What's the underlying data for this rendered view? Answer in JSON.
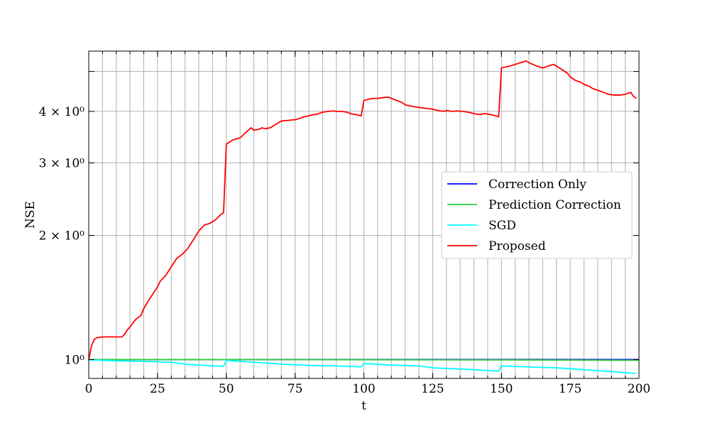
{
  "chart_data": {
    "type": "line",
    "xlabel": "t",
    "ylabel": "NSE",
    "xlim": [
      0,
      200
    ],
    "ylim": [
      0.9,
      5.6
    ],
    "yscale": "log",
    "grid": true,
    "legend_position": "center-right",
    "xticks": [
      {
        "value": 0,
        "label": "0"
      },
      {
        "value": 25,
        "label": "25"
      },
      {
        "value": 50,
        "label": "50"
      },
      {
        "value": 75,
        "label": "75"
      },
      {
        "value": 100,
        "label": "100"
      },
      {
        "value": 125,
        "label": "125"
      },
      {
        "value": 150,
        "label": "150"
      },
      {
        "value": 175,
        "label": "175"
      },
      {
        "value": 200,
        "label": "200"
      }
    ],
    "yticks": [
      {
        "value": 1,
        "label": "10⁰"
      },
      {
        "value": 2,
        "label": "2 × 10⁰"
      },
      {
        "value": 3,
        "label": "3 × 10⁰"
      },
      {
        "value": 4,
        "label": "4 × 10⁰"
      }
    ],
    "series": [
      {
        "name": "Correction Only",
        "color": "#0000ff",
        "x": [
          0,
          200
        ],
        "y": [
          1.0,
          1.0
        ]
      },
      {
        "name": "Prediction Correction",
        "color": "#2ecc40",
        "x": [
          0,
          50,
          100,
          150,
          200
        ],
        "y": [
          1.0,
          1.0,
          0.999,
          0.998,
          0.996
        ]
      },
      {
        "name": "SGD",
        "color": "#00ffff",
        "x": [
          0,
          10,
          20,
          30,
          35,
          40,
          49,
          50,
          60,
          70,
          80,
          90,
          99,
          100,
          110,
          120,
          125,
          140,
          149,
          150,
          160,
          170,
          180,
          190,
          199
        ],
        "y": [
          0.998,
          0.993,
          0.99,
          0.985,
          0.975,
          0.97,
          0.963,
          0.995,
          0.985,
          0.975,
          0.968,
          0.965,
          0.96,
          0.978,
          0.97,
          0.965,
          0.955,
          0.945,
          0.937,
          0.965,
          0.96,
          0.955,
          0.945,
          0.935,
          0.925
        ]
      },
      {
        "name": "Proposed",
        "color": "#ff0000",
        "x": [
          0,
          1,
          2,
          3,
          5,
          8,
          12,
          13,
          14,
          15,
          17,
          19,
          20,
          22,
          25,
          26,
          28,
          30,
          32,
          34,
          36,
          38,
          40,
          42,
          44,
          46,
          48,
          49,
          50,
          52,
          53,
          55,
          58,
          59,
          60,
          62,
          63,
          64,
          66,
          68,
          70,
          72,
          75,
          77,
          78,
          80,
          81,
          83,
          85,
          87,
          89,
          90,
          92,
          94,
          95,
          97,
          99,
          100,
          103,
          105,
          107,
          109,
          110,
          112,
          114,
          115,
          117,
          119,
          121,
          125,
          127,
          129,
          130,
          132,
          134,
          136,
          138,
          140,
          142,
          144,
          146,
          148,
          149,
          150,
          153,
          155,
          157,
          159,
          160,
          162,
          164,
          165,
          167,
          169,
          170,
          172,
          174,
          175,
          177,
          179,
          180,
          182,
          183,
          185,
          187,
          189,
          191,
          193,
          195,
          197,
          198,
          199
        ],
        "y": [
          1.0,
          1.08,
          1.12,
          1.13,
          1.135,
          1.135,
          1.135,
          1.15,
          1.18,
          1.2,
          1.25,
          1.28,
          1.33,
          1.4,
          1.5,
          1.55,
          1.6,
          1.68,
          1.76,
          1.8,
          1.86,
          1.95,
          2.05,
          2.12,
          2.14,
          2.18,
          2.25,
          2.27,
          3.33,
          3.4,
          3.42,
          3.45,
          3.6,
          3.65,
          3.6,
          3.62,
          3.65,
          3.63,
          3.65,
          3.72,
          3.79,
          3.8,
          3.82,
          3.85,
          3.88,
          3.9,
          3.92,
          3.94,
          3.98,
          4.0,
          4.01,
          4.0,
          4.0,
          3.98,
          3.95,
          3.93,
          3.9,
          4.25,
          4.3,
          4.3,
          4.32,
          4.33,
          4.3,
          4.25,
          4.2,
          4.15,
          4.12,
          4.1,
          4.08,
          4.05,
          4.02,
          4.0,
          4.02,
          4.0,
          4.01,
          4.0,
          3.98,
          3.95,
          3.93,
          3.95,
          3.93,
          3.9,
          3.88,
          5.1,
          5.15,
          5.2,
          5.25,
          5.3,
          5.25,
          5.18,
          5.12,
          5.1,
          5.15,
          5.2,
          5.15,
          5.05,
          4.95,
          4.85,
          4.75,
          4.7,
          4.65,
          4.6,
          4.55,
          4.5,
          4.45,
          4.4,
          4.38,
          4.38,
          4.4,
          4.45,
          4.35,
          4.3
        ]
      }
    ]
  }
}
